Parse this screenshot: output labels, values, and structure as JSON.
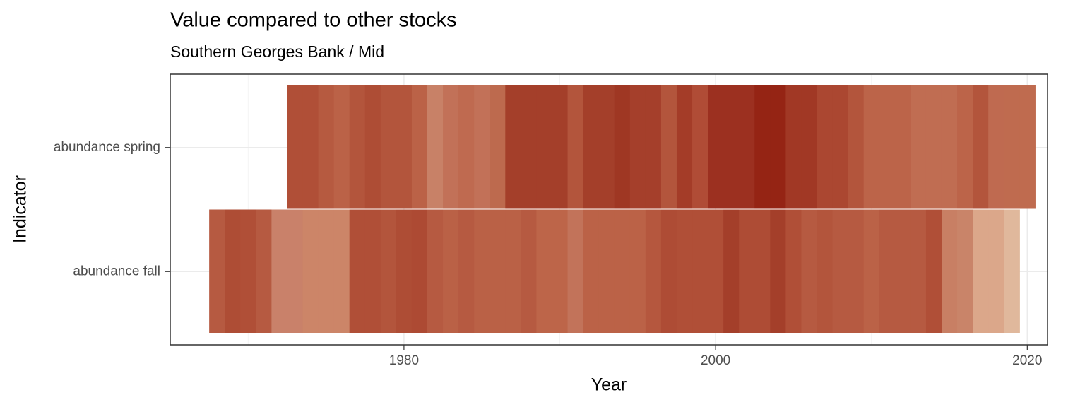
{
  "chart_data": {
    "type": "heatmap",
    "title": "Value compared to other stocks",
    "subtitle": "Southern Georges Bank / Mid",
    "x_label": "Year",
    "y_label": "Indicator",
    "xlim": [
      1965,
      2021.3
    ],
    "xticks": [
      1980,
      2000,
      2020
    ],
    "xminor_ticks": [
      1970,
      1990,
      2010
    ],
    "grid": true,
    "series": [
      {
        "name": "abundance fall",
        "x": [
          1968,
          1969,
          1970,
          1971,
          1972,
          1973,
          1974,
          1975,
          1976,
          1977,
          1978,
          1979,
          1980,
          1981,
          1982,
          1983,
          1984,
          1985,
          1986,
          1987,
          1988,
          1989,
          1990,
          1991,
          1992,
          1993,
          1994,
          1995,
          1996,
          1997,
          1998,
          1999,
          2000,
          2001,
          2002,
          2003,
          2004,
          2005,
          2006,
          2007,
          2008,
          2009,
          2010,
          2011,
          2012,
          2013,
          2014,
          2015,
          2016,
          2017,
          2018,
          2019
        ],
        "colors": [
          "#b65a41",
          "#ae4d35",
          "#b04f37",
          "#b65a41",
          "#c9816a",
          "#c9816a",
          "#cc8568",
          "#cc8568",
          "#cc8568",
          "#b04f37",
          "#b04f37",
          "#b3553c",
          "#ae4d35",
          "#ad4a33",
          "#b65a41",
          "#ba6146",
          "#b65a41",
          "#ba6146",
          "#ba6146",
          "#ba6146",
          "#b65a41",
          "#bd6549",
          "#bd6549",
          "#c2735a",
          "#bb6247",
          "#bb6247",
          "#bb6247",
          "#bb6247",
          "#b5573e",
          "#ae4c35",
          "#b04f37",
          "#b04f37",
          "#b04f37",
          "#a43f2a",
          "#ae4c35",
          "#ae4c35",
          "#a43f2a",
          "#b04f37",
          "#b65a41",
          "#b3553c",
          "#b65a41",
          "#b65a41",
          "#bb6247",
          "#b65a41",
          "#b65a41",
          "#b65a41",
          "#b04f37",
          "#c87f64",
          "#c98469",
          "#dba78a",
          "#dba78a",
          "#e0b89c"
        ]
      },
      {
        "name": "abundance spring",
        "x": [
          1973,
          1974,
          1975,
          1976,
          1977,
          1978,
          1979,
          1980,
          1981,
          1982,
          1983,
          1984,
          1985,
          1986,
          1987,
          1988,
          1989,
          1990,
          1991,
          1992,
          1993,
          1994,
          1995,
          1996,
          1997,
          1998,
          1999,
          2000,
          2001,
          2002,
          2003,
          2004,
          2005,
          2006,
          2007,
          2008,
          2009,
          2010,
          2011,
          2012,
          2013,
          2014,
          2015,
          2016,
          2017,
          2018,
          2019,
          2020
        ],
        "colors": [
          "#b04f37",
          "#b04f37",
          "#b65a40",
          "#bb6247",
          "#b3553c",
          "#ae4d35",
          "#b3553c",
          "#b3553c",
          "#bb6247",
          "#c88167",
          "#c27158",
          "#bf6a50",
          "#c27158",
          "#bd6a4e",
          "#a43f2a",
          "#a43f2a",
          "#a43f2a",
          "#a43f2a",
          "#b3553c",
          "#a43f2a",
          "#a43f2a",
          "#9f3723",
          "#a53f2b",
          "#a53f2b",
          "#b3553c",
          "#a43c28",
          "#b04c36",
          "#9c3020",
          "#9c3020",
          "#9c3020",
          "#952414",
          "#952414",
          "#a13825",
          "#a13825",
          "#ab4731",
          "#ab4731",
          "#b3553c",
          "#bc6449",
          "#bc6449",
          "#bc6449",
          "#c06d52",
          "#c06d52",
          "#c06d52",
          "#bc6449",
          "#b3553c",
          "#bf6a50",
          "#bf6b4f",
          "#bf6b4f"
        ]
      }
    ]
  }
}
